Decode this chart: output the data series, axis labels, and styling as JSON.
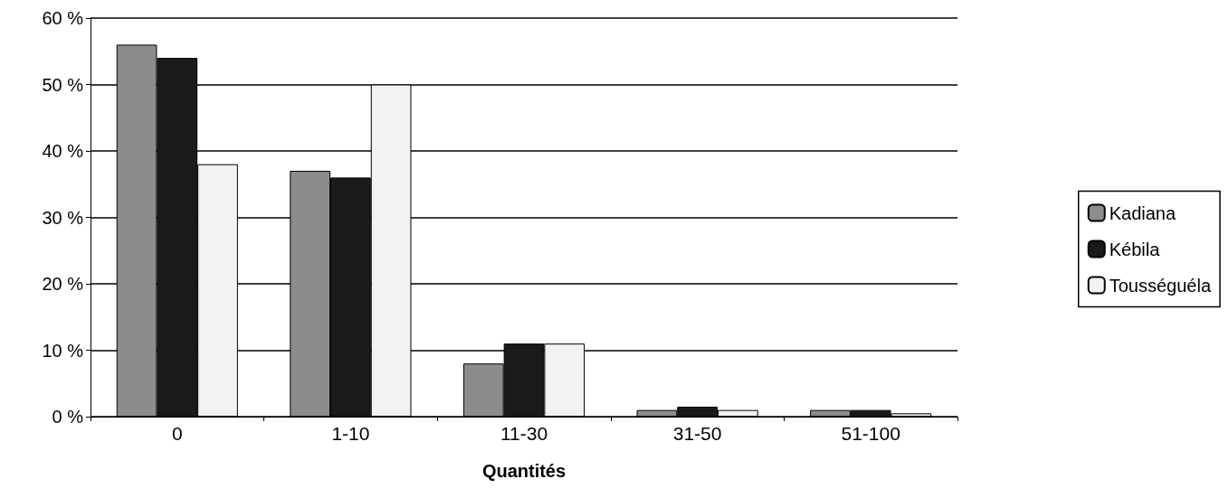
{
  "chart_data": {
    "type": "bar",
    "xlabel": "Quantités",
    "categories": [
      "0",
      "1-10",
      "11-30",
      "31-50",
      "51-100"
    ],
    "series": [
      {
        "name": "Kadiana",
        "color": "#8c8c8c",
        "values": [
          56,
          37,
          8,
          1,
          1
        ]
      },
      {
        "name": "Kébila",
        "color": "#1a1a1a",
        "values": [
          54,
          36,
          11,
          1.5,
          1
        ]
      },
      {
        "name": "Tousséguéla",
        "color": "#f2f2f2",
        "values": [
          38,
          50,
          11,
          1,
          0.5
        ]
      }
    ],
    "ylim": [
      0,
      60
    ],
    "yticks": [
      {
        "value": 0,
        "label": "0 %"
      },
      {
        "value": 10,
        "label": "10 %"
      },
      {
        "value": 20,
        "label": "20 %"
      },
      {
        "value": 30,
        "label": "30 %"
      },
      {
        "value": 40,
        "label": "40 %"
      },
      {
        "value": 50,
        "label": "50 %"
      },
      {
        "value": 60,
        "label": "60 %"
      }
    ],
    "grid": "y",
    "legend": "right"
  }
}
